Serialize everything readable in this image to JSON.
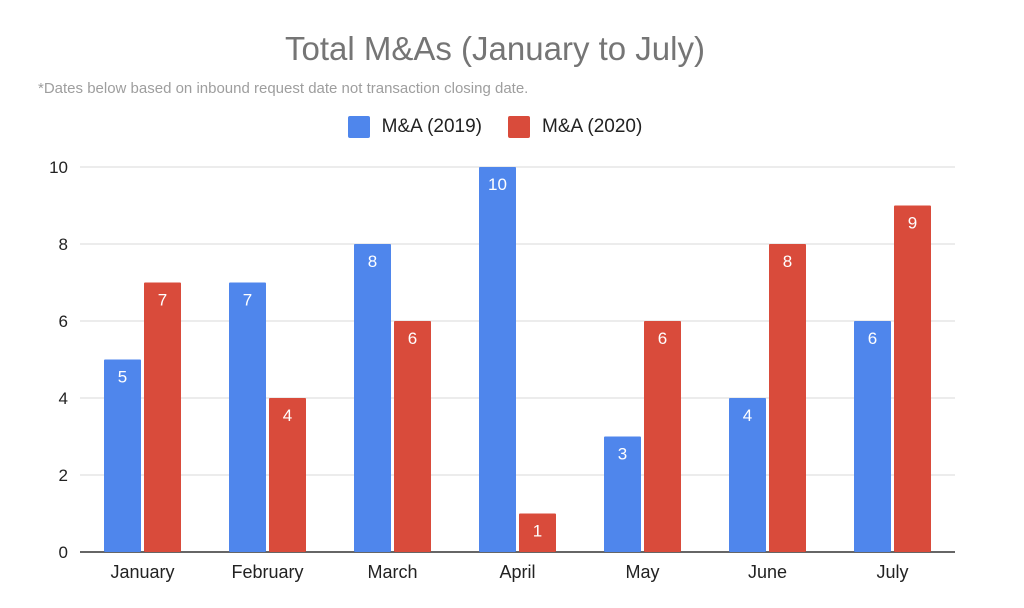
{
  "chart_data": {
    "type": "bar",
    "title": "Total M&As (January to July)",
    "subtitle": "*Dates below based on inbound request date not transaction closing date.",
    "categories": [
      "January",
      "February",
      "March",
      "April",
      "May",
      "June",
      "July"
    ],
    "series": [
      {
        "name": "M&A (2019)",
        "color": "#4F86EC",
        "values": [
          5,
          7,
          8,
          10,
          3,
          4,
          6
        ]
      },
      {
        "name": "M&A (2020)",
        "color": "#D94B3B",
        "values": [
          7,
          4,
          6,
          1,
          6,
          8,
          9
        ]
      }
    ],
    "yticks": [
      "0",
      "2",
      "4",
      "6",
      "8",
      "10"
    ],
    "ylim": [
      0,
      10
    ],
    "grid": true,
    "legend_position": "top-center",
    "data_labels": true
  }
}
